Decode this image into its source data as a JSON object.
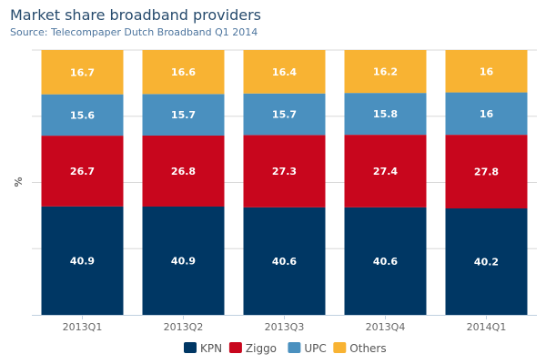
{
  "chart_data": {
    "type": "bar",
    "stacking": "percent",
    "title": "Market share broadband providers",
    "subtitle": "Source: Telecompaper Dutch Broadband Q1 2014",
    "ylabel": "%",
    "xlabel": "",
    "categories": [
      "2013Q1",
      "2013Q2",
      "2013Q3",
      "2013Q4",
      "2014Q1"
    ],
    "series": [
      {
        "name": "KPN",
        "color": "#003764",
        "values": [
          40.9,
          40.9,
          40.6,
          40.6,
          40.2
        ]
      },
      {
        "name": "Ziggo",
        "color": "#c8061d",
        "values": [
          26.7,
          26.8,
          27.3,
          27.4,
          27.8
        ]
      },
      {
        "name": "UPC",
        "color": "#4a90bf",
        "values": [
          15.6,
          15.7,
          15.7,
          15.8,
          16
        ]
      },
      {
        "name": "Others",
        "color": "#f8b333",
        "values": [
          16.7,
          16.6,
          16.4,
          16.2,
          16
        ]
      }
    ],
    "ylim": [
      0,
      100
    ],
    "grid": true,
    "legend": "bottom"
  }
}
